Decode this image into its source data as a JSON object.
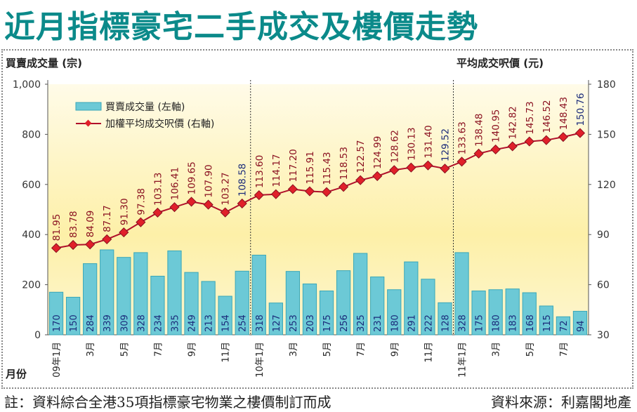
{
  "title": "近月指標豪宅二手成交及樓價走勢",
  "footnote": "註：資料綜合全港35項指標豪宅物業之樓價制訂而成",
  "source": "資料來源：利嘉閣地產",
  "chart_data": {
    "type": "bar+line",
    "title": "近月指標豪宅二手成交及樓價走勢",
    "xlabel": "月份",
    "ylabel_left": "買賣成交量 (宗)",
    "ylabel_right": "平均成交呎價 (元)",
    "ylim_left": [
      0,
      1000
    ],
    "ylim_right": [
      30,
      180
    ],
    "yticks_left": [
      "0",
      "200",
      "400",
      "600",
      "800",
      "1,000"
    ],
    "yticks_right": [
      "30",
      "60",
      "90",
      "120",
      "150",
      "180"
    ],
    "xtick_labels": [
      "09年1月",
      "",
      "3月",
      "",
      "5月",
      "",
      "7月",
      "",
      "9月",
      "",
      "11月",
      "",
      "10年1月",
      "",
      "3月",
      "",
      "5月",
      "",
      "7月",
      "",
      "9月",
      "",
      "11月",
      "",
      "11年1月",
      "",
      "3月",
      "",
      "5月",
      "",
      "7月",
      ""
    ],
    "legend": [
      "買賣成交量 (左軸)",
      "加權平均成交呎價 (右軸)"
    ],
    "legend_position": "top-left",
    "colors": {
      "bar": "#6cc9d6",
      "line": "#b0102a",
      "marker": "#e0202a",
      "label_red": "#8a1020",
      "label_blue": "#1a2a7a"
    },
    "series": [
      {
        "name": "買賣成交量 (左軸)",
        "axis": "left",
        "type": "bar",
        "values": [
          170,
          150,
          284,
          339,
          309,
          328,
          234,
          335,
          249,
          213,
          154,
          254,
          318,
          127,
          253,
          203,
          175,
          256,
          325,
          231,
          180,
          291,
          222,
          128,
          328,
          175,
          180,
          183,
          168,
          115,
          72,
          94
        ]
      },
      {
        "name": "加權平均成交呎價 (右軸)",
        "axis": "right",
        "type": "line",
        "values": [
          "81.95",
          "83.78",
          "84.09",
          "87.17",
          "91.30",
          "97.38",
          "103.13",
          "106.41",
          "109.65",
          "107.90",
          "103.27",
          "108.58",
          "113.60",
          "114.17",
          "117.20",
          "115.91",
          "115.43",
          "118.53",
          "122.57",
          "124.99",
          "128.62",
          "130.13",
          "131.40",
          "129.52",
          "133.63",
          "138.48",
          "140.95",
          "142.82",
          "145.73",
          "146.52",
          "148.43",
          "150.76"
        ]
      }
    ]
  }
}
